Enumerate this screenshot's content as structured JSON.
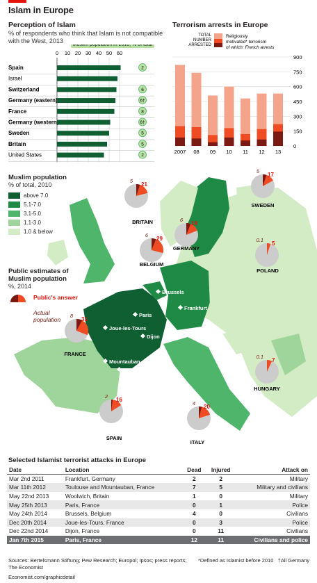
{
  "header": {
    "title": "Islam in Europe"
  },
  "perception": {
    "title": "Perception of Islam",
    "subtitle": "% of respondents who think that Islam is not compatible with the West, 2013",
    "tag": "Muslim population in 2010, % of total"
  },
  "arrests": {
    "title": "Terrorism arrests in Europe",
    "legend_total": "TOTAL NUMBER ARRESTED",
    "legend_rel": "Religiously motivated* terrorism",
    "legend_french": "of which: French arrests"
  },
  "muslim_map": {
    "title": "Muslim population",
    "subtitle": "% of total, 2010",
    "legend": [
      {
        "label": "above 7.0",
        "color": "#0f5f32"
      },
      {
        "label": "5.1-7.0",
        "color": "#1f8a45"
      },
      {
        "label": "3.1-5.0",
        "color": "#4fb56a"
      },
      {
        "label": "1.1-3.0",
        "color": "#9fd59a"
      },
      {
        "label": "1.0 & below",
        "color": "#d3ecc6"
      }
    ],
    "estimates_title": "Public estimates of Muslim population",
    "estimates_sub": "%, 2014",
    "public_answer": "Public's answer",
    "actual": "Actual population",
    "countries": [
      "BRITAIN",
      "SWEDEN",
      "GERMANY",
      "POLAND",
      "BELGIUM",
      "FRANCE",
      "HUNGARY",
      "SPAIN",
      "ITALY"
    ],
    "cities": [
      "Woolwich",
      "Brussels",
      "Frankfurt",
      "Paris",
      "Joue-les-Tours",
      "Dijon",
      "Mountauban",
      "Toulouse"
    ],
    "pies": [
      {
        "country": "BRITAIN",
        "answer": "21",
        "actual": "5"
      },
      {
        "country": "SWEDEN",
        "answer": "17",
        "actual": "5"
      },
      {
        "country": "GERMANY",
        "answer": "19",
        "actual": "6"
      },
      {
        "country": "POLAND",
        "answer": "5",
        "actual": "0.1"
      },
      {
        "country": "BELGIUM",
        "answer": "29",
        "actual": "6"
      },
      {
        "country": "FRANCE",
        "answer": "31",
        "actual": "8"
      },
      {
        "country": "HUNGARY",
        "answer": "7",
        "actual": "0.1"
      },
      {
        "country": "SPAIN",
        "answer": "16",
        "actual": "2"
      },
      {
        "country": "ITALY",
        "answer": "20",
        "actual": "4"
      }
    ]
  },
  "attacks": {
    "title": "Selected Islamist terrorist attacks in Europe",
    "headers": [
      "Date",
      "Location",
      "Dead",
      "Injured",
      "Attack on"
    ],
    "rows": [
      [
        "Mar 2nd 2011",
        "Frankfurt, Germany",
        "2",
        "2",
        "Military"
      ],
      [
        "Mar 11th 2012",
        "Toulouse and Mountauban, France",
        "7",
        "5",
        "Military and civilians"
      ],
      [
        "May 22nd 2013",
        "Woolwich, Britain",
        "1",
        "0",
        "Military"
      ],
      [
        "May 25th 2013",
        "Paris, France",
        "0",
        "1",
        "Police"
      ],
      [
        "May 24th 2014",
        "Brussels, Belgium",
        "4",
        "0",
        "Civilians"
      ],
      [
        "Dec 20th 2014",
        "Joue-les-Tours, France",
        "0",
        "3",
        "Police"
      ],
      [
        "Dec 22nd 2014",
        "Dijon, France",
        "0",
        "11",
        "Civilians"
      ],
      [
        "Jan 7th 2015",
        "Paris, France",
        "12",
        "11",
        "Civilians and police"
      ]
    ]
  },
  "footer": {
    "sources": "Sources: Bertelsmann Stiftung; Pew Research; Europol; Ipsos; press reports; The Economist",
    "site": "Economist.com/graphicdetail",
    "note": "*Defined as Islamist before 2010   †All Germany"
  },
  "chart_data": [
    {
      "type": "bar",
      "title": "Perception of Islam",
      "categories": [
        "Spain",
        "Israel",
        "Switzerland",
        "Germany (eastern)",
        "France",
        "Germany (western)",
        "Sweden",
        "Britain",
        "United States"
      ],
      "bold": [
        true,
        false,
        true,
        true,
        true,
        true,
        true,
        true,
        false
      ],
      "values": [
        61,
        58,
        57,
        56,
        55,
        51,
        50,
        48,
        45
      ],
      "muslim_pct": [
        "2",
        "",
        "6",
        "6†",
        "8",
        "6†",
        "5",
        "5",
        "2"
      ],
      "xticks": [
        0,
        10,
        20,
        30,
        40,
        50,
        60
      ],
      "xlim": [
        0,
        70
      ]
    },
    {
      "type": "bar",
      "title": "Terrorism arrests in Europe",
      "categories": [
        "2007",
        "08",
        "09",
        "10",
        "11",
        "12",
        "13"
      ],
      "total": [
        820,
        740,
        510,
        600,
        480,
        530,
        530
      ],
      "religious": [
        200,
        190,
        110,
        180,
        120,
        170,
        220
      ],
      "french": [
        85,
        75,
        37,
        85,
        55,
        65,
        145
      ],
      "yticks": [
        0,
        150,
        300,
        450,
        600,
        750,
        900
      ],
      "ylim": [
        0,
        900
      ],
      "colors": {
        "total": "#f4a48b",
        "religious": "#ef4c23",
        "french": "#7a1a12"
      }
    }
  ]
}
